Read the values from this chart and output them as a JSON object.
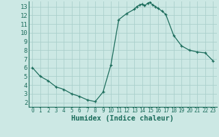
{
  "x": [
    0,
    1,
    2,
    3,
    4,
    5,
    6,
    7,
    8,
    9,
    10,
    11,
    12,
    13,
    13.3,
    13.7,
    14,
    14.3,
    14.7,
    15,
    15.3,
    15.7,
    16,
    16.5,
    17,
    18,
    19,
    20,
    21,
    22,
    23
  ],
  "y": [
    6.0,
    5.0,
    4.5,
    3.8,
    3.5,
    3.0,
    2.7,
    2.3,
    2.1,
    3.2,
    6.3,
    11.5,
    12.2,
    12.7,
    13.0,
    13.2,
    13.3,
    13.1,
    13.4,
    13.5,
    13.2,
    13.0,
    12.8,
    12.5,
    12.1,
    9.7,
    8.5,
    8.0,
    7.8,
    7.7,
    6.8
  ],
  "xlabel": "Humidex (Indice chaleur)",
  "ylim": [
    1.5,
    13.6
  ],
  "xlim": [
    -0.5,
    23.5
  ],
  "yticks": [
    2,
    3,
    4,
    5,
    6,
    7,
    8,
    9,
    10,
    11,
    12,
    13
  ],
  "xticks": [
    0,
    1,
    2,
    3,
    4,
    5,
    6,
    7,
    8,
    9,
    10,
    11,
    12,
    13,
    14,
    15,
    16,
    17,
    18,
    19,
    20,
    21,
    22,
    23
  ],
  "line_color": "#1a6b5a",
  "marker": "+",
  "bg_color": "#cce8e4",
  "grid_color": "#aacfcb",
  "axis_color": "#1a6b5a",
  "label_color": "#1a6b5a"
}
